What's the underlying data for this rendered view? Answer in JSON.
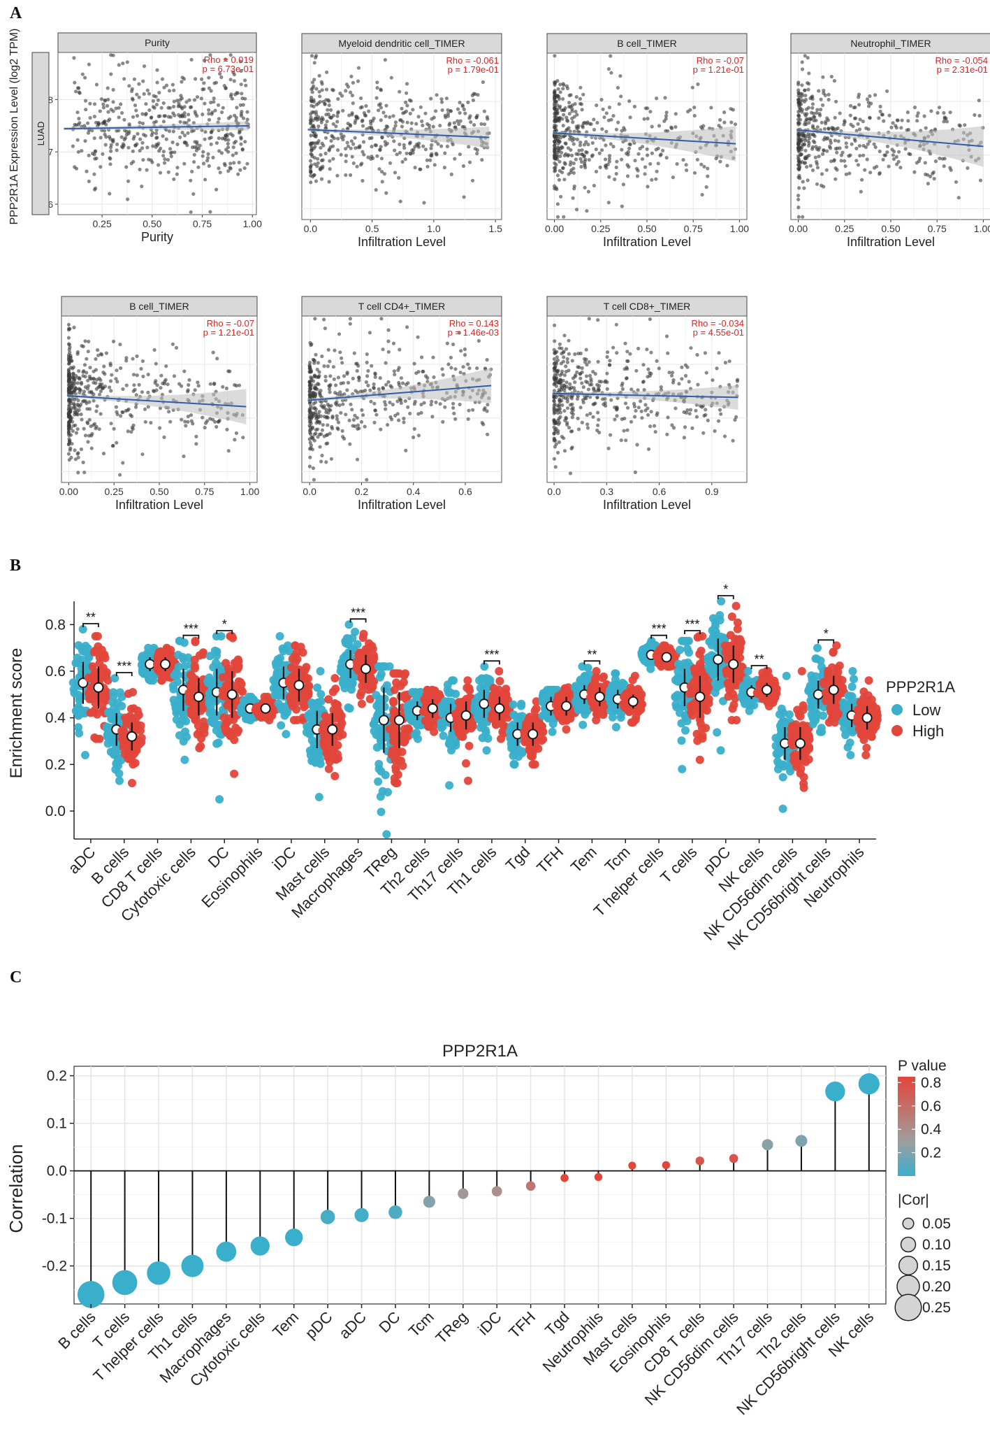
{
  "figure": {
    "panel_labels": [
      "A",
      "B",
      "C"
    ],
    "colors": {
      "low": "#3AAFCB",
      "high": "#E2463A",
      "fit_line": "#2F5DAA",
      "ci_band": "#BDBDBD",
      "stat_text": "#D62728",
      "points": "#3A3A3A"
    }
  },
  "chart_data": [
    {
      "panel": "A",
      "type": "scatter",
      "ylabel": "PPP2R1A Expression Level (log2 TPM)",
      "row_strip": "LUAD",
      "y_ticks": [
        6,
        7,
        8
      ],
      "ylim": [
        5.8,
        8.9
      ],
      "subplots": [
        {
          "title": "Purity",
          "stat1": "Rho = 0.019",
          "stat2": "p = 6.73e-01",
          "xlabel": "Purity",
          "x_ticks": [
            "0.25",
            "0.50",
            "0.75",
            "1.00"
          ],
          "tick_values": [
            0.25,
            0.5,
            0.75,
            1.0
          ],
          "xlim": [
            0.03,
            1.02
          ],
          "x_max": 0.98,
          "x_skew": 0.5,
          "fit": [
            7.44,
            7.5
          ],
          "band_end": 0.06,
          "seed": 11
        },
        {
          "title": "Myeloid dendritic cell_TIMER",
          "stat1": "Rho = -0.061",
          "stat2": "p = 1.79e-01",
          "xlabel": "Infiltration Level",
          "x_ticks": [
            "0.0",
            "0.5",
            "1.0",
            "1.5"
          ],
          "tick_values": [
            0.0,
            0.5,
            1.0,
            1.5
          ],
          "xlim": [
            -0.07,
            1.55
          ],
          "x_max": 1.45,
          "x_skew": 1.6,
          "fit": [
            7.48,
            7.32
          ],
          "band_end": 0.17,
          "seed": 23
        },
        {
          "title": "B cell_TIMER",
          "stat1": "Rho = -0.07",
          "stat2": "p = 1.21e-01",
          "xlabel": "Infiltration Level",
          "x_ticks": [
            "0.00",
            "0.25",
            "0.50",
            "0.75",
            "1.00"
          ],
          "tick_values": [
            0.0,
            0.25,
            0.5,
            0.75,
            1.0
          ],
          "xlim": [
            -0.04,
            1.04
          ],
          "x_max": 0.98,
          "x_skew": 3.0,
          "fit": [
            7.42,
            7.2
          ],
          "band_end": 0.3,
          "seed": 37
        },
        {
          "title": "Neutrophil_TIMER",
          "stat1": "Rho = -0.054",
          "stat2": "p = 2.31e-01",
          "xlabel": "Infiltration Level",
          "x_ticks": [
            "0.00",
            "0.25",
            "0.50",
            "0.75",
            "1.00"
          ],
          "tick_values": [
            0.0,
            0.25,
            0.5,
            0.75,
            1.0
          ],
          "xlim": [
            -0.04,
            1.04
          ],
          "x_max": 1.0,
          "x_skew": 2.6,
          "fit": [
            7.48,
            7.15
          ],
          "band_end": 0.35,
          "seed": 41
        },
        {
          "title": "B cell_TIMER",
          "stat1": "Rho = -0.07",
          "stat2": "p = 1.21e-01",
          "xlabel": "Infiltration Level",
          "x_ticks": [
            "0.00",
            "0.25",
            "0.50",
            "0.75",
            "1.00"
          ],
          "tick_values": [
            0.0,
            0.25,
            0.5,
            0.75,
            1.0
          ],
          "xlim": [
            -0.04,
            1.04
          ],
          "x_max": 0.98,
          "x_skew": 3.0,
          "fit": [
            7.42,
            7.2
          ],
          "band_end": 0.3,
          "seed": 53
        },
        {
          "title": "T cell CD4+_TIMER",
          "stat1": "Rho = 0.143",
          "stat2": "p = 1.46e-03",
          "xlabel": "Infiltration Level",
          "x_ticks": [
            "0.0",
            "0.2",
            "0.4",
            "0.6"
          ],
          "tick_values": [
            0.0,
            0.2,
            0.4,
            0.6
          ],
          "xlim": [
            -0.03,
            0.74
          ],
          "x_max": 0.7,
          "x_skew": 2.2,
          "fit": [
            7.32,
            7.62
          ],
          "band_end": 0.3,
          "seed": 67
        },
        {
          "title": "T cell CD8+_TIMER",
          "stat1": "Rho = -0.034",
          "stat2": "p = 4.55e-01",
          "xlabel": "Infiltration Level",
          "x_ticks": [
            "0.0",
            "0.3",
            "0.6",
            "0.9"
          ],
          "tick_values": [
            0.0,
            0.3,
            0.6,
            0.9
          ],
          "xlim": [
            -0.04,
            1.1
          ],
          "x_max": 1.05,
          "x_skew": 2.4,
          "fit": [
            7.46,
            7.38
          ],
          "band_end": 0.2,
          "seed": 79
        }
      ]
    },
    {
      "panel": "B",
      "type": "violin-dot",
      "ylabel": "Enrichment score",
      "ylim": [
        -0.12,
        0.9
      ],
      "y_ticks": [
        "0.0",
        "0.2",
        "0.4",
        "0.6",
        "0.8"
      ],
      "y_tick_values": [
        0.0,
        0.2,
        0.4,
        0.6,
        0.8
      ],
      "legend_title": "PPP2R1A",
      "legend": [
        "Low",
        "High"
      ],
      "categories": [
        "aDC",
        "B cells",
        "CD8 T cells",
        "Cytotoxic cells",
        "DC",
        "Eosinophils",
        "iDC",
        "Mast cells",
        "Macrophages",
        "TReg",
        "Th2 cells",
        "Th17 cells",
        "Th1 cells",
        "Tgd",
        "TFH",
        "Tem",
        "Tcm",
        "T helper cells",
        "T cells",
        "pDC",
        "NK cells",
        "NK CD56dim cells",
        "NK CD56bright cells",
        "Neutrophils"
      ],
      "significance": [
        "**",
        "***",
        "",
        "***",
        "*",
        "",
        "",
        "",
        "***",
        "",
        "",
        "",
        "***",
        "",
        "",
        "**",
        "",
        "***",
        "***",
        "*",
        "**",
        "",
        "*",
        ""
      ],
      "series": [
        {
          "name": "Low",
          "mean": [
            0.55,
            0.35,
            0.63,
            0.52,
            0.51,
            0.44,
            0.55,
            0.35,
            0.63,
            0.39,
            0.43,
            0.4,
            0.46,
            0.33,
            0.45,
            0.5,
            0.48,
            0.67,
            0.53,
            0.65,
            0.51,
            0.29,
            0.5,
            0.41
          ],
          "sd": [
            0.09,
            0.07,
            0.03,
            0.09,
            0.1,
            0.02,
            0.07,
            0.08,
            0.06,
            0.14,
            0.04,
            0.06,
            0.06,
            0.05,
            0.04,
            0.04,
            0.04,
            0.02,
            0.08,
            0.09,
            0.03,
            0.07,
            0.06,
            0.05
          ],
          "min": [
            0.24,
            0.13,
            0.56,
            0.22,
            0.05,
            0.39,
            0.33,
            0.06,
            0.44,
            -0.1,
            0.31,
            0.11,
            0.26,
            0.2,
            0.34,
            0.37,
            0.36,
            0.61,
            0.18,
            0.26,
            0.43,
            0.01,
            0.34,
            0.24
          ],
          "max": [
            0.78,
            0.57,
            0.7,
            0.73,
            0.75,
            0.49,
            0.75,
            0.6,
            0.8,
            0.62,
            0.51,
            0.56,
            0.62,
            0.46,
            0.52,
            0.62,
            0.59,
            0.73,
            0.73,
            0.9,
            0.6,
            0.58,
            0.7,
            0.6
          ]
        },
        {
          "name": "High",
          "mean": [
            0.53,
            0.32,
            0.63,
            0.49,
            0.5,
            0.44,
            0.54,
            0.35,
            0.61,
            0.39,
            0.44,
            0.41,
            0.44,
            0.33,
            0.45,
            0.49,
            0.47,
            0.66,
            0.49,
            0.63,
            0.52,
            0.29,
            0.52,
            0.4
          ],
          "sd": [
            0.09,
            0.06,
            0.03,
            0.08,
            0.1,
            0.02,
            0.07,
            0.07,
            0.06,
            0.12,
            0.04,
            0.06,
            0.05,
            0.05,
            0.04,
            0.04,
            0.03,
            0.02,
            0.09,
            0.08,
            0.03,
            0.07,
            0.06,
            0.05
          ],
          "min": [
            0.31,
            0.12,
            0.56,
            0.27,
            0.16,
            0.39,
            0.39,
            0.15,
            0.46,
            0.12,
            0.34,
            0.13,
            0.31,
            0.2,
            0.35,
            0.39,
            0.38,
            0.62,
            0.22,
            0.39,
            0.45,
            0.1,
            0.38,
            0.24
          ],
          "max": [
            0.75,
            0.51,
            0.7,
            0.73,
            0.75,
            0.49,
            0.71,
            0.57,
            0.76,
            0.59,
            0.52,
            0.56,
            0.6,
            0.47,
            0.53,
            0.6,
            0.58,
            0.71,
            0.75,
            0.88,
            0.6,
            0.6,
            0.71,
            0.56
          ]
        }
      ]
    },
    {
      "panel": "C",
      "type": "lollipop",
      "title": "PPP2R1A",
      "ylabel": "Correlation",
      "ylim": [
        -0.28,
        0.22
      ],
      "y_ticks": [
        "0.2",
        "0.1",
        "0.0",
        "-0.1",
        "-0.2"
      ],
      "y_tick_values": [
        0.2,
        0.1,
        0.0,
        -0.1,
        -0.2
      ],
      "categories": [
        "B cells",
        "T cells",
        "T helper cells",
        "Th1 cells",
        "Macrophages",
        "Cytotoxic cells",
        "Tem",
        "pDC",
        "aDC",
        "DC",
        "Tcm",
        "TReg",
        "iDC",
        "TFH",
        "Tgd",
        "Neutrophils",
        "Mast cells",
        "Eosinophils",
        "CD8 T cells",
        "NK CD56dim cells",
        "Th17 cells",
        "Th2 cells",
        "NK CD56bright cells",
        "NK cells"
      ],
      "values": [
        -0.26,
        -0.235,
        -0.215,
        -0.2,
        -0.17,
        -0.158,
        -0.14,
        -0.097,
        -0.093,
        -0.087,
        -0.065,
        -0.048,
        -0.043,
        -0.032,
        -0.015,
        -0.013,
        0.011,
        0.012,
        0.021,
        0.026,
        0.055,
        0.063,
        0.167,
        0.183
      ],
      "p_values": [
        0.0,
        0.0,
        0.0,
        0.0,
        0.0,
        0.0,
        0.0,
        0.03,
        0.03,
        0.05,
        0.18,
        0.28,
        0.32,
        0.45,
        0.7,
        0.72,
        0.8,
        0.8,
        0.62,
        0.62,
        0.2,
        0.17,
        0.0,
        0.0
      ],
      "legend_p_title": "P value",
      "legend_p_ticks": [
        "0.8",
        "0.6",
        "0.4",
        "0.2"
      ],
      "legend_p_values": [
        0.8,
        0.6,
        0.4,
        0.2
      ],
      "legend_cor_title": "|Cor|",
      "legend_cor_labels": [
        "0.05",
        "0.10",
        "0.15",
        "0.20",
        "0.25"
      ],
      "legend_cor_values": [
        0.05,
        0.1,
        0.15,
        0.2,
        0.25
      ]
    }
  ]
}
